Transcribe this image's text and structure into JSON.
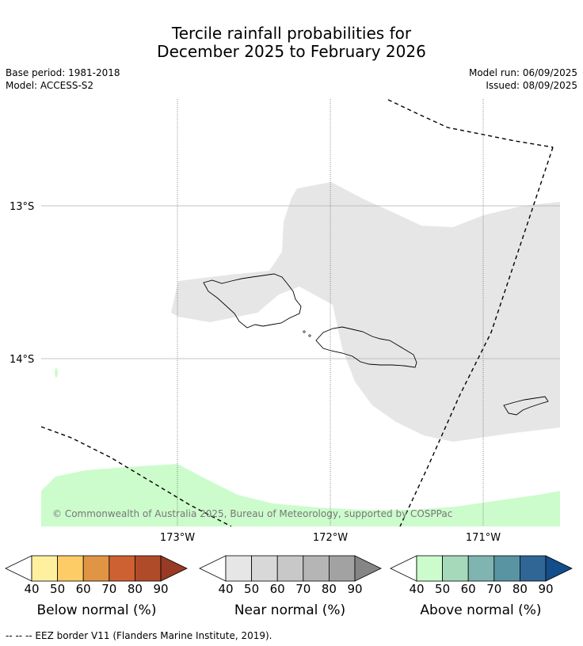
{
  "title_line1": "Tercile rainfall probabilities for",
  "title_line2": "December 2025 to February 2026",
  "meta": {
    "base_period": "Base period: 1981-2018",
    "model": "Model: ACCESS-S2",
    "model_run": "Model run: 06/09/2025",
    "issued": "Issued: 08/09/2025"
  },
  "map": {
    "lat_labels": [
      "13°S",
      "14°S"
    ],
    "lon_labels": [
      "173°W",
      "172°W",
      "171°W"
    ],
    "copyright": "© Commonwealth of Australia 2025, Bureau of Meteorology, supported by COSPPac",
    "colors": {
      "near_normal_40": "#e6e6e6",
      "above_normal_40": "#ccfccc"
    }
  },
  "colorbars": [
    {
      "label": "Below normal (%)",
      "ticks": [
        "40",
        "50",
        "60",
        "70",
        "80",
        "90"
      ],
      "colors": [
        "#fff0a0",
        "#fdcc66",
        "#e09545",
        "#cd6132",
        "#b04b29",
        "#983a24"
      ]
    },
    {
      "label": "Near normal (%)",
      "ticks": [
        "40",
        "50",
        "60",
        "70",
        "80",
        "90"
      ],
      "colors": [
        "#e6e6e6",
        "#d8d8d8",
        "#c8c8c8",
        "#b5b5b5",
        "#a2a2a2",
        "#858585"
      ]
    },
    {
      "label": "Above normal (%)",
      "ticks": [
        "40",
        "50",
        "60",
        "70",
        "80",
        "90"
      ],
      "colors": [
        "#ccfccc",
        "#a5d9ba",
        "#7fb4b1",
        "#5994a2",
        "#2f6696",
        "#134d8a"
      ]
    }
  ],
  "footer": "--  --  -- EEZ border V11 (Flanders Marine Institute, 2019)."
}
